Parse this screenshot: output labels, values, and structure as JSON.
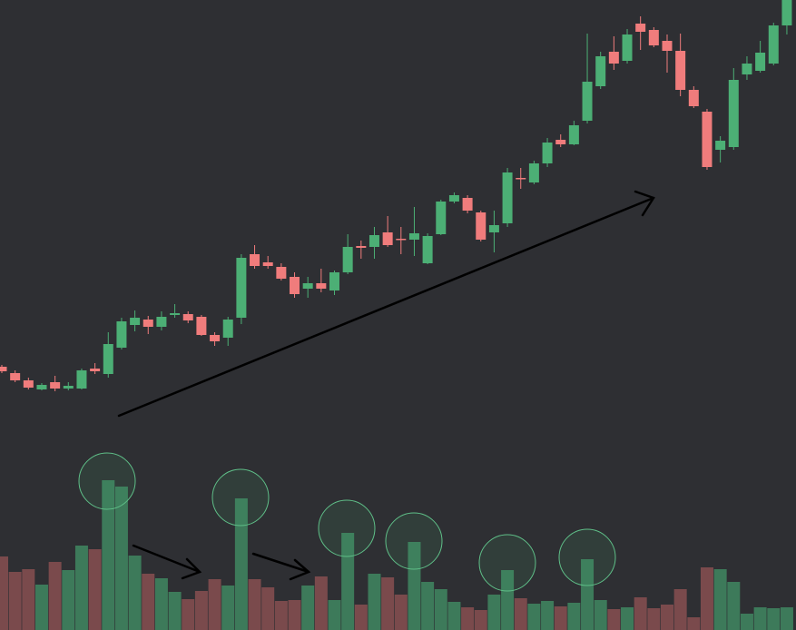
{
  "chart_data": {
    "type": "candlestick",
    "open": [
      290,
      283,
      275,
      265,
      273,
      266,
      266,
      288,
      282,
      311,
      336,
      342,
      334,
      347,
      348,
      345,
      325,
      322,
      344,
      414,
      405,
      400,
      389,
      376,
      382,
      374,
      394,
      423,
      422,
      438,
      431,
      430,
      404,
      436,
      472,
      476,
      460,
      438,
      448,
      498,
      493,
      514,
      540,
      535,
      561,
      599,
      637,
      627,
      668,
      661,
      649,
      638,
      595,
      571,
      529,
      532,
      612,
      616,
      624,
      666
    ],
    "high": [
      292,
      286,
      278,
      272,
      280,
      273,
      288,
      294,
      328,
      344,
      352,
      346,
      351,
      359,
      351,
      347,
      328,
      345,
      414,
      424,
      412,
      404,
      394,
      389,
      398,
      396,
      436,
      429,
      444,
      456,
      444,
      466,
      437,
      474,
      482,
      479,
      462,
      462,
      509,
      509,
      517,
      542,
      546,
      561,
      657,
      637,
      654,
      662,
      676,
      664,
      656,
      657,
      599,
      574,
      544,
      619,
      632,
      649,
      669,
      694
    ],
    "low": [
      283,
      273,
      265,
      264,
      263,
      264,
      265,
      282,
      278,
      309,
      329,
      326,
      330,
      344,
      338,
      324,
      313,
      313,
      337,
      398,
      398,
      385,
      366,
      366,
      372,
      369,
      392,
      409,
      409,
      422,
      414,
      412,
      403,
      435,
      470,
      459,
      428,
      416,
      444,
      486,
      491,
      510,
      532,
      534,
      558,
      596,
      617,
      624,
      639,
      642,
      614,
      588,
      575,
      507,
      515,
      529,
      606,
      614,
      622,
      656
    ],
    "close": [
      285,
      275,
      267,
      270,
      266,
      269,
      286,
      285,
      315,
      340,
      344,
      334,
      345,
      349,
      341,
      325,
      318,
      342,
      410,
      401,
      401,
      387,
      370,
      382,
      376,
      394,
      422,
      421,
      435,
      424,
      430,
      437,
      434,
      472,
      479,
      462,
      430,
      446,
      504,
      497,
      514,
      537,
      535,
      556,
      604,
      632,
      624,
      656,
      659,
      644,
      638,
      595,
      577,
      510,
      539,
      606,
      624,
      636,
      666,
      694
    ],
    "volume": [
      81,
      64,
      67,
      50,
      75,
      66,
      93,
      89,
      165,
      158,
      82,
      62,
      57,
      42,
      34,
      43,
      56,
      49,
      145,
      56,
      47,
      32,
      33,
      49,
      59,
      33,
      107,
      28,
      62,
      58,
      39,
      97,
      53,
      45,
      31,
      25,
      22,
      39,
      66,
      35,
      29,
      32,
      26,
      30,
      78,
      33,
      23,
      25,
      36,
      24,
      28,
      45,
      14,
      69,
      67,
      53,
      18,
      25,
      24,
      25
    ],
    "ylim": [
      0,
      694
    ],
    "y2lim": [
      0,
      694
    ],
    "up_color": "#4caf75",
    "down_color": "#f07c7c",
    "volume_up_color": "#3d7a5a",
    "volume_down_color": "#7a4a4c"
  }
}
